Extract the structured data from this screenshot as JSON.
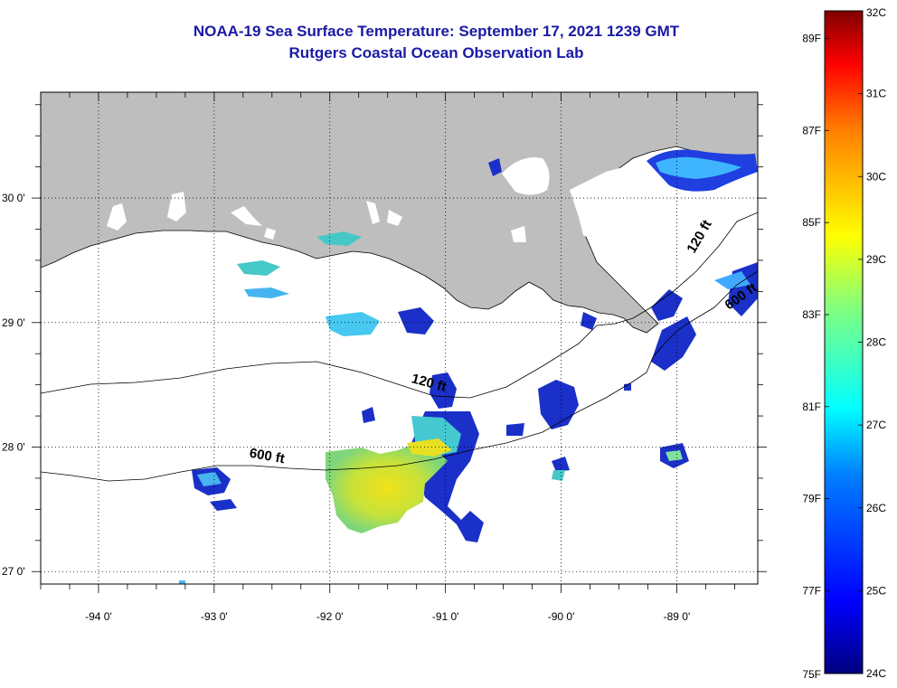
{
  "title": "NOAA-19 Sea Surface Temperature:  September 17, 2021 1239 GMT",
  "subtitle": "Rutgers Coastal Ocean Observation Lab",
  "map": {
    "lon_range": [
      -94.5,
      -88.3
    ],
    "lat_range": [
      26.9,
      30.85
    ],
    "lon_ticks": [
      {
        "lon": -94,
        "label": "-94 0'"
      },
      {
        "lon": -93,
        "label": "-93 0'"
      },
      {
        "lon": -92,
        "label": "-92 0'"
      },
      {
        "lon": -91,
        "label": "-91 0'"
      },
      {
        "lon": -90,
        "label": "-90 0'"
      },
      {
        "lon": -89,
        "label": "-89 0'"
      }
    ],
    "lat_ticks": [
      {
        "lat": 30,
        "label": "30 0'"
      },
      {
        "lat": 29,
        "label": "29 0'"
      },
      {
        "lat": 28,
        "label": "28 0'"
      },
      {
        "lat": 27,
        "label": "27 0'"
      }
    ],
    "land_color": "#bebebe",
    "contour_labels": [
      {
        "text": "120 ft",
        "lon": -91.3,
        "lat": 28.52,
        "rotate": 15
      },
      {
        "text": "600 ft",
        "lon": -92.7,
        "lat": 27.92,
        "rotate": 10
      },
      {
        "text": "120 ft",
        "lon": -88.85,
        "lat": 29.55,
        "rotate": -60
      },
      {
        "text": "600 ft",
        "lon": -88.55,
        "lat": 29.1,
        "rotate": -35
      }
    ]
  },
  "colorbar": {
    "min_c": 24,
    "max_c": 32,
    "celsius_labels": [
      "32C",
      "31C",
      "30C",
      "29C",
      "28C",
      "27C",
      "26C",
      "25C",
      "24C"
    ],
    "fahrenheit_labels": [
      {
        "label": "89F",
        "value_c": 31.667
      },
      {
        "label": "87F",
        "value_c": 30.556
      },
      {
        "label": "85F",
        "value_c": 29.444
      },
      {
        "label": "83F",
        "value_c": 28.333
      },
      {
        "label": "81F",
        "value_c": 27.222
      },
      {
        "label": "79F",
        "value_c": 26.111
      },
      {
        "label": "77F",
        "value_c": 25.0
      },
      {
        "label": "75F",
        "value_c": 23.889
      }
    ],
    "colors": [
      "#00007f",
      "#0000ff",
      "#007fff",
      "#00ffff",
      "#7fff7f",
      "#ffff00",
      "#ff7f00",
      "#ff0000",
      "#7f0000"
    ]
  }
}
